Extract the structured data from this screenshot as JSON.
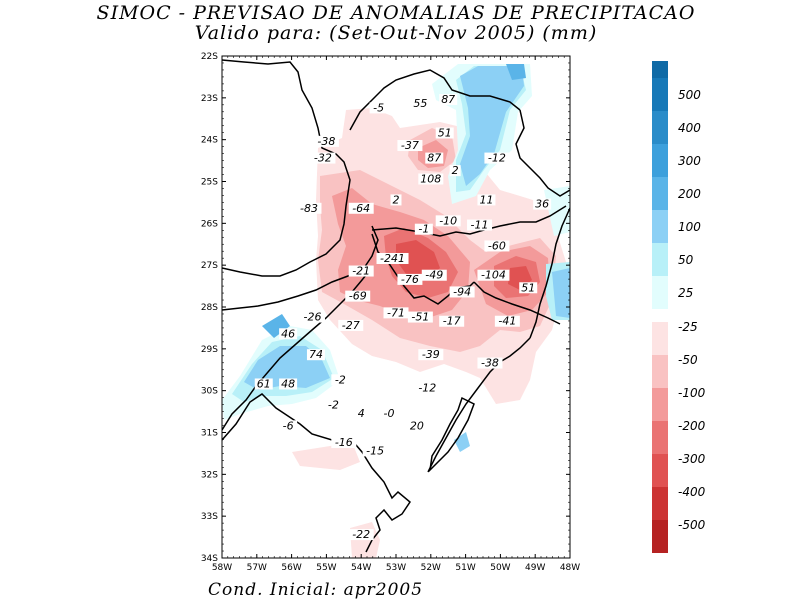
{
  "title": "SIMOC - PREVISAO DE ANOMALIAS DE PRECIPITACAO",
  "subtitle": "Valido para: (Set-Out-Nov 2005) (mm)",
  "footer": "Cond. Inicial: apr2005",
  "map": {
    "lon_range": [
      -58,
      -48
    ],
    "lat_range": [
      -34,
      -22
    ],
    "lat_ticks": [
      "22S",
      "23S",
      "24S",
      "25S",
      "26S",
      "27S",
      "28S",
      "29S",
      "30S",
      "31S",
      "32S",
      "33S",
      "34S"
    ],
    "lon_ticks": [
      "58W",
      "57W",
      "56W",
      "55W",
      "54W",
      "53W",
      "52W",
      "51W",
      "50W",
      "49W",
      "48W"
    ]
  },
  "legend": {
    "positive": [
      {
        "label": "500",
        "color": "#1779b8"
      },
      {
        "label": "400",
        "color": "#2a8cc9"
      },
      {
        "label": "300",
        "color": "#3da0dc"
      },
      {
        "label": "200",
        "color": "#5ab4e8"
      },
      {
        "label": "100",
        "color": "#8cd0f5"
      },
      {
        "label": "50",
        "color": "#b8f0f8"
      },
      {
        "label": "25",
        "color": "#e2fdfd"
      }
    ],
    "top_color": "#0f6aa6",
    "negative": [
      {
        "label": "-25",
        "color": "#fde3e3"
      },
      {
        "label": "-50",
        "color": "#f9c2c2"
      },
      {
        "label": "-100",
        "color": "#f39a9a"
      },
      {
        "label": "-200",
        "color": "#ea7373"
      },
      {
        "label": "-300",
        "color": "#e05252"
      },
      {
        "label": "-400",
        "color": "#cc3333"
      },
      {
        "label": "-500",
        "color": "#b52222"
      }
    ],
    "bottom_color": "#a61c1c"
  },
  "values": [
    {
      "lon": -53.5,
      "lat": -23.3,
      "text": "-5"
    },
    {
      "lon": -52.3,
      "lat": -23.2,
      "text": "55"
    },
    {
      "lon": -51.5,
      "lat": -23.1,
      "text": "87"
    },
    {
      "lon": -51.6,
      "lat": -23.9,
      "text": "51"
    },
    {
      "lon": -55.0,
      "lat": -24.1,
      "text": "-38"
    },
    {
      "lon": -52.6,
      "lat": -24.2,
      "text": "-37"
    },
    {
      "lon": -55.1,
      "lat": -24.5,
      "text": "-32"
    },
    {
      "lon": -51.9,
      "lat": -24.5,
      "text": "87"
    },
    {
      "lon": -50.1,
      "lat": -24.5,
      "text": "-12"
    },
    {
      "lon": -51.3,
      "lat": -24.8,
      "text": "2"
    },
    {
      "lon": -52.0,
      "lat": -25.0,
      "text": "108"
    },
    {
      "lon": -50.4,
      "lat": -25.5,
      "text": "11"
    },
    {
      "lon": -48.8,
      "lat": -25.6,
      "text": "36"
    },
    {
      "lon": -53.0,
      "lat": -25.5,
      "text": "2"
    },
    {
      "lon": -55.5,
      "lat": -25.7,
      "text": "-83"
    },
    {
      "lon": -54.0,
      "lat": -25.7,
      "text": "-64"
    },
    {
      "lon": -51.5,
      "lat": -26.0,
      "text": "-10"
    },
    {
      "lon": -50.6,
      "lat": -26.1,
      "text": "-11"
    },
    {
      "lon": -52.2,
      "lat": -26.2,
      "text": "-1"
    },
    {
      "lon": -50.1,
      "lat": -26.6,
      "text": "-60"
    },
    {
      "lon": -53.1,
      "lat": -26.9,
      "text": "-241"
    },
    {
      "lon": -54.0,
      "lat": -27.2,
      "text": "-21"
    },
    {
      "lon": -52.6,
      "lat": -27.4,
      "text": "-76"
    },
    {
      "lon": -51.9,
      "lat": -27.3,
      "text": "-49"
    },
    {
      "lon": -50.2,
      "lat": -27.3,
      "text": "-104"
    },
    {
      "lon": -49.2,
      "lat": -27.6,
      "text": "51"
    },
    {
      "lon": -54.1,
      "lat": -27.8,
      "text": "-69"
    },
    {
      "lon": -51.1,
      "lat": -27.7,
      "text": "-94"
    },
    {
      "lon": -55.4,
      "lat": -28.3,
      "text": "-26"
    },
    {
      "lon": -53.0,
      "lat": -28.2,
      "text": "-71"
    },
    {
      "lon": -52.3,
      "lat": -28.3,
      "text": "-51"
    },
    {
      "lon": -51.4,
      "lat": -28.4,
      "text": "-17"
    },
    {
      "lon": -49.8,
      "lat": -28.4,
      "text": "-41"
    },
    {
      "lon": -54.3,
      "lat": -28.5,
      "text": "-27"
    },
    {
      "lon": -56.1,
      "lat": -28.7,
      "text": "46"
    },
    {
      "lon": -55.3,
      "lat": -29.2,
      "text": "74"
    },
    {
      "lon": -52.0,
      "lat": -29.2,
      "text": "-39"
    },
    {
      "lon": -50.3,
      "lat": -29.4,
      "text": "-38"
    },
    {
      "lon": -54.6,
      "lat": -29.8,
      "text": "-2"
    },
    {
      "lon": -56.8,
      "lat": -29.9,
      "text": "61"
    },
    {
      "lon": -56.1,
      "lat": -29.9,
      "text": "48"
    },
    {
      "lon": -52.1,
      "lat": -30.0,
      "text": "-12"
    },
    {
      "lon": -54.8,
      "lat": -30.4,
      "text": "-2"
    },
    {
      "lon": -54.0,
      "lat": -30.6,
      "text": "4"
    },
    {
      "lon": -53.2,
      "lat": -30.6,
      "text": "-0"
    },
    {
      "lon": -52.4,
      "lat": -30.9,
      "text": "20"
    },
    {
      "lon": -56.1,
      "lat": -30.9,
      "text": "-6"
    },
    {
      "lon": -54.5,
      "lat": -31.3,
      "text": "-16"
    },
    {
      "lon": -53.6,
      "lat": -31.5,
      "text": "-15"
    },
    {
      "lon": -54.0,
      "lat": -33.5,
      "text": "-22"
    }
  ]
}
